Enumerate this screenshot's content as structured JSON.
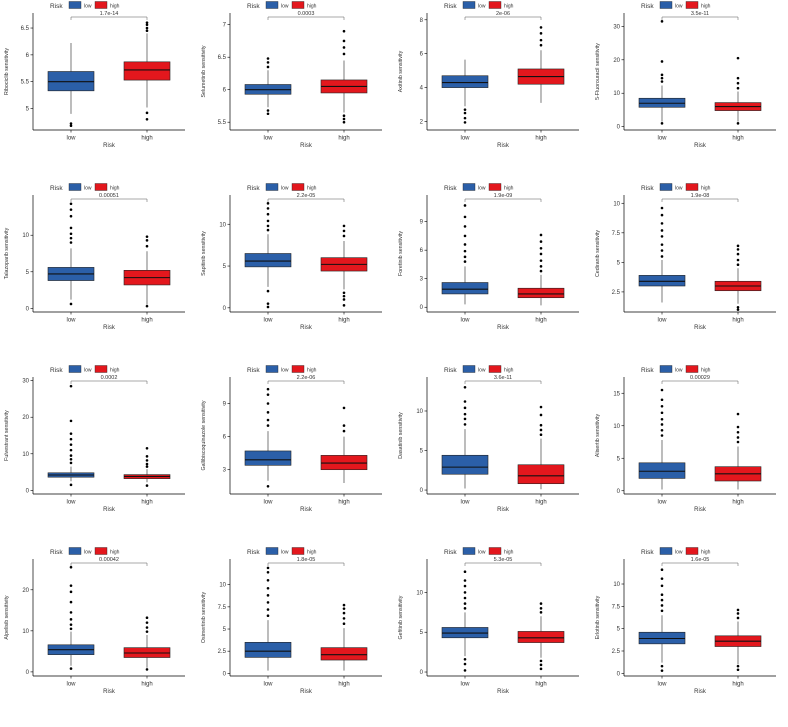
{
  "legend": {
    "title": "Risk",
    "items": [
      "low",
      "high"
    ]
  },
  "colors": {
    "low": "#2B5FA8",
    "high": "#E3171D",
    "axis": "#000000",
    "text": "#4D4D4D"
  },
  "chart_data": [
    {
      "type": "boxplot",
      "ylabel": "Ribociclib sensitivity",
      "xlabel": "Risk",
      "categories": [
        "low",
        "high"
      ],
      "p_value": "1.7e-14",
      "yticks": [
        5.0,
        5.5,
        6.0,
        6.5
      ],
      "ylim": [
        4.6,
        6.78
      ],
      "boxes": [
        {
          "name": "low",
          "min": 4.9,
          "q1": 5.33,
          "median": 5.5,
          "q3": 5.69,
          "max": 6.22,
          "outliers": [
            4.72,
            4.68
          ]
        },
        {
          "name": "high",
          "min": 5.02,
          "q1": 5.53,
          "median": 5.72,
          "q3": 5.87,
          "max": 6.4,
          "outliers": [
            6.45,
            6.5,
            6.56,
            6.6,
            4.92,
            4.8
          ]
        }
      ]
    },
    {
      "type": "boxplot",
      "ylabel": "Selumetinib sensitivity",
      "xlabel": "Risk",
      "categories": [
        "low",
        "high"
      ],
      "p_value": "0.0003",
      "yticks": [
        5.5,
        6.0,
        6.5,
        7.0
      ],
      "ylim": [
        5.38,
        7.18
      ],
      "boxes": [
        {
          "name": "low",
          "min": 5.73,
          "q1": 5.93,
          "median": 6.0,
          "q3": 6.08,
          "max": 6.3,
          "outliers": [
            6.35,
            6.42,
            6.48,
            5.68,
            5.63
          ]
        },
        {
          "name": "high",
          "min": 5.65,
          "q1": 5.95,
          "median": 6.05,
          "q3": 6.15,
          "max": 6.45,
          "outliers": [
            6.55,
            6.65,
            6.75,
            6.9,
            5.6,
            5.55,
            5.5
          ]
        }
      ]
    },
    {
      "type": "boxplot",
      "ylabel": "Axitinib sensitivity",
      "xlabel": "Risk",
      "categories": [
        "low",
        "high"
      ],
      "p_value": "2e-06",
      "yticks": [
        2,
        4,
        6,
        8
      ],
      "ylim": [
        1.5,
        8.4
      ],
      "boxes": [
        {
          "name": "low",
          "min": 2.9,
          "q1": 4.0,
          "median": 4.3,
          "q3": 4.7,
          "max": 5.65,
          "outliers": [
            2.7,
            2.5,
            2.2,
            1.95
          ]
        },
        {
          "name": "high",
          "min": 3.1,
          "q1": 4.2,
          "median": 4.65,
          "q3": 5.1,
          "max": 6.2,
          "outliers": [
            6.5,
            6.8,
            7.2,
            7.55
          ]
        }
      ]
    },
    {
      "type": "boxplot",
      "ylabel": "5-Fluorouracil sensitivity",
      "xlabel": "Risk",
      "categories": [
        "low",
        "high"
      ],
      "p_value": "3.5e-11",
      "yticks": [
        0,
        10,
        20,
        30
      ],
      "ylim": [
        -1,
        34
      ],
      "boxes": [
        {
          "name": "low",
          "min": 1.5,
          "q1": 5.8,
          "median": 7.0,
          "q3": 8.5,
          "max": 12.3,
          "outliers": [
            13.5,
            14.5,
            15.5,
            19.5,
            31.5,
            1.0
          ]
        },
        {
          "name": "high",
          "min": 1.5,
          "q1": 4.8,
          "median": 6.0,
          "q3": 7.2,
          "max": 10.5,
          "outliers": [
            11.5,
            13.0,
            14.5,
            20.5,
            1.0
          ]
        }
      ]
    },
    {
      "type": "boxplot",
      "ylabel": "Talazoparib sensitivity",
      "xlabel": "Risk",
      "categories": [
        "low",
        "high"
      ],
      "p_value": "0.00051",
      "yticks": [
        0,
        5,
        10
      ],
      "ylim": [
        -0.5,
        15.5
      ],
      "boxes": [
        {
          "name": "low",
          "min": 1.2,
          "q1": 3.8,
          "median": 4.7,
          "q3": 5.6,
          "max": 8.2,
          "outliers": [
            9,
            9.6,
            10.2,
            11,
            12.6,
            13.5,
            14.3,
            0.6
          ]
        },
        {
          "name": "high",
          "min": 0.5,
          "q1": 3.2,
          "median": 4.2,
          "q3": 5.2,
          "max": 7.8,
          "outliers": [
            8.5,
            9.3,
            9.8,
            0.3
          ]
        }
      ]
    },
    {
      "type": "boxplot",
      "ylabel": "Sapitinib sensitivity",
      "xlabel": "Risk",
      "categories": [
        "low",
        "high"
      ],
      "p_value": "2.2e-05",
      "yticks": [
        0,
        5,
        10
      ],
      "ylim": [
        -0.5,
        13.5
      ],
      "boxes": [
        {
          "name": "low",
          "min": 2.5,
          "q1": 4.9,
          "median": 5.6,
          "q3": 6.5,
          "max": 8.8,
          "outliers": [
            9.3,
            9.8,
            10.4,
            11.2,
            11.9,
            12.5,
            2.0,
            0.5,
            0.1
          ]
        },
        {
          "name": "high",
          "min": 2.2,
          "q1": 4.4,
          "median": 5.2,
          "q3": 6.0,
          "max": 8.0,
          "outliers": [
            8.6,
            9.2,
            9.8,
            1.8,
            1.4,
            1.0,
            0.3
          ]
        }
      ]
    },
    {
      "type": "boxplot",
      "ylabel": "Foretinib sensitivity",
      "xlabel": "Risk",
      "categories": [
        "low",
        "high"
      ],
      "p_value": "1.9e-09",
      "yticks": [
        0,
        3,
        6,
        9
      ],
      "ylim": [
        -0.5,
        11.8
      ],
      "boxes": [
        {
          "name": "low",
          "min": 0.3,
          "q1": 1.4,
          "median": 1.9,
          "q3": 2.6,
          "max": 4.3,
          "outliers": [
            4.8,
            5.3,
            5.9,
            6.6,
            7.5,
            8.5,
            9.5,
            10.7
          ]
        },
        {
          "name": "high",
          "min": 0.2,
          "q1": 1.0,
          "median": 1.4,
          "q3": 2.0,
          "max": 3.4,
          "outliers": [
            3.8,
            4.3,
            4.9,
            5.6,
            6.2,
            6.9,
            7.6
          ]
        }
      ]
    },
    {
      "type": "boxplot",
      "ylabel": "Cediranib sensitivity",
      "xlabel": "Risk",
      "categories": [
        "low",
        "high"
      ],
      "p_value": "1.9e-08",
      "yticks": [
        2.5,
        5.0,
        7.5,
        10.0
      ],
      "ylim": [
        0.8,
        10.7
      ],
      "boxes": [
        {
          "name": "low",
          "min": 1.6,
          "q1": 3.0,
          "median": 3.4,
          "q3": 3.9,
          "max": 5.2,
          "outliers": [
            5.5,
            6.0,
            6.5,
            7.2,
            7.7,
            8.3,
            9.0,
            9.6
          ]
        },
        {
          "name": "high",
          "min": 1.5,
          "q1": 2.6,
          "median": 3.0,
          "q3": 3.4,
          "max": 4.5,
          "outliers": [
            4.8,
            5.2,
            5.7,
            6.1,
            6.4,
            1.2,
            1.0
          ]
        }
      ]
    },
    {
      "type": "boxplot",
      "ylabel": "Fulvestrant sensitivity",
      "xlabel": "Risk",
      "categories": [
        "low",
        "high"
      ],
      "p_value": "0.0002",
      "yticks": [
        0,
        10,
        20,
        30
      ],
      "ylim": [
        -1,
        31
      ],
      "boxes": [
        {
          "name": "low",
          "min": 2.5,
          "q1": 3.6,
          "median": 4.2,
          "q3": 4.8,
          "max": 6.5,
          "outliers": [
            7.5,
            8.5,
            9.5,
            11,
            12.5,
            14,
            15.5,
            19,
            28.5,
            1.5
          ]
        },
        {
          "name": "high",
          "min": 2.2,
          "q1": 3.2,
          "median": 3.8,
          "q3": 4.3,
          "max": 5.8,
          "outliers": [
            6.5,
            7.2,
            8.2,
            9.3,
            11.5,
            1.3
          ]
        }
      ]
    },
    {
      "type": "boxplot",
      "ylabel": "Gallibiscoquinazole sensitivity",
      "xlabel": "Risk",
      "categories": [
        "low",
        "high"
      ],
      "p_value": "2.2e-06",
      "yticks": [
        3,
        6,
        9
      ],
      "ylim": [
        0.8,
        11.4
      ],
      "boxes": [
        {
          "name": "low",
          "min": 2.0,
          "q1": 3.4,
          "median": 3.9,
          "q3": 4.7,
          "max": 6.5,
          "outliers": [
            7.0,
            7.5,
            8.2,
            9.0,
            9.8,
            10.3,
            1.5
          ]
        },
        {
          "name": "high",
          "min": 1.8,
          "q1": 3.0,
          "median": 3.6,
          "q3": 4.3,
          "max": 6.0,
          "outliers": [
            6.5,
            7.0,
            8.6
          ]
        }
      ]
    },
    {
      "type": "boxplot",
      "ylabel": "Dasatinib sensitivity",
      "xlabel": "Risk",
      "categories": [
        "low",
        "high"
      ],
      "p_value": "3.6e-11",
      "yticks": [
        0,
        5,
        10
      ],
      "ylim": [
        -0.5,
        14.3
      ],
      "boxes": [
        {
          "name": "low",
          "min": 0.2,
          "q1": 2.0,
          "median": 2.9,
          "q3": 4.4,
          "max": 7.7,
          "outliers": [
            8.3,
            9.0,
            9.6,
            10.4,
            11.2,
            13.0
          ]
        },
        {
          "name": "high",
          "min": 0.1,
          "q1": 0.8,
          "median": 1.8,
          "q3": 3.2,
          "max": 6.5,
          "outliers": [
            7.0,
            7.6,
            8.2,
            9.5,
            10.5
          ]
        }
      ]
    },
    {
      "type": "boxplot",
      "ylabel": "Alisertib sensitivity",
      "xlabel": "Risk",
      "categories": [
        "low",
        "high"
      ],
      "p_value": "0.00029",
      "yticks": [
        0,
        5,
        10,
        15
      ],
      "ylim": [
        -0.5,
        17.5
      ],
      "boxes": [
        {
          "name": "low",
          "min": 0.2,
          "q1": 1.9,
          "median": 3.0,
          "q3": 4.3,
          "max": 7.8,
          "outliers": [
            8.5,
            9.3,
            10.2,
            11.0,
            12.0,
            13.0,
            14.0,
            15.5
          ]
        },
        {
          "name": "high",
          "min": 0.2,
          "q1": 1.5,
          "median": 2.6,
          "q3": 3.7,
          "max": 6.8,
          "outliers": [
            7.5,
            8.2,
            9.0,
            9.8,
            11.8
          ]
        }
      ]
    },
    {
      "type": "boxplot",
      "ylabel": "Alpelisib sensitivity",
      "xlabel": "Risk",
      "categories": [
        "low",
        "high"
      ],
      "p_value": "0.00042",
      "yticks": [
        0,
        10,
        20
      ],
      "ylim": [
        -1,
        27.5
      ],
      "boxes": [
        {
          "name": "low",
          "min": 1.5,
          "q1": 4.2,
          "median": 5.4,
          "q3": 6.6,
          "max": 9.8,
          "outliers": [
            10.5,
            11.5,
            12.8,
            14.5,
            17,
            19.5,
            21,
            25.5,
            0.8
          ]
        },
        {
          "name": "high",
          "min": 1.0,
          "q1": 3.5,
          "median": 4.6,
          "q3": 5.9,
          "max": 9.0,
          "outliers": [
            9.8,
            10.8,
            12.0,
            13.2,
            0.6
          ]
        }
      ]
    },
    {
      "type": "boxplot",
      "ylabel": "Osimertinib sensitivity",
      "xlabel": "Risk",
      "categories": [
        "low",
        "high"
      ],
      "p_value": "1.8e-05",
      "yticks": [
        0.0,
        2.5,
        5.0,
        7.5,
        10.0
      ],
      "ylim": [
        -0.3,
        12.9
      ],
      "boxes": [
        {
          "name": "low",
          "min": 0.3,
          "q1": 1.8,
          "median": 2.5,
          "q3": 3.5,
          "max": 6.0,
          "outliers": [
            6.5,
            7.2,
            8.0,
            8.8,
            9.6,
            10.5,
            11.4,
            11.9
          ]
        },
        {
          "name": "high",
          "min": 0.3,
          "q1": 1.5,
          "median": 2.1,
          "q3": 2.9,
          "max": 5.1,
          "outliers": [
            5.6,
            6.2,
            6.8,
            7.3,
            7.7
          ]
        }
      ]
    },
    {
      "type": "boxplot",
      "ylabel": "Gefitinib sensitivity",
      "xlabel": "Risk",
      "categories": [
        "low",
        "high"
      ],
      "p_value": "5.3e-05",
      "yticks": [
        0,
        5,
        10
      ],
      "ylim": [
        -0.5,
        14.2
      ],
      "boxes": [
        {
          "name": "low",
          "min": 2.0,
          "q1": 4.3,
          "median": 4.9,
          "q3": 5.6,
          "max": 7.5,
          "outliers": [
            8.0,
            8.6,
            9.3,
            10.0,
            10.8,
            11.5,
            12.6,
            1.6,
            1.0,
            0.2
          ]
        },
        {
          "name": "high",
          "min": 1.8,
          "q1": 3.7,
          "median": 4.3,
          "q3": 5.1,
          "max": 7.0,
          "outliers": [
            7.5,
            8.0,
            8.6,
            1.4,
            0.9,
            0.4
          ]
        }
      ]
    },
    {
      "type": "boxplot",
      "ylabel": "Erlotinib sensitivity",
      "xlabel": "Risk",
      "categories": [
        "low",
        "high"
      ],
      "p_value": "1.6e-05",
      "yticks": [
        0.0,
        2.5,
        5.0,
        7.5,
        10.0
      ],
      "ylim": [
        -0.3,
        12.8
      ],
      "boxes": [
        {
          "name": "low",
          "min": 1.2,
          "q1": 3.3,
          "median": 3.9,
          "q3": 4.6,
          "max": 6.5,
          "outliers": [
            7.0,
            7.6,
            8.2,
            8.8,
            9.8,
            10.6,
            11.6,
            0.8,
            0.3
          ]
        },
        {
          "name": "high",
          "min": 1.0,
          "q1": 3.0,
          "median": 3.6,
          "q3": 4.2,
          "max": 5.8,
          "outliers": [
            6.2,
            6.7,
            7.1,
            0.8,
            0.4
          ]
        }
      ]
    }
  ]
}
